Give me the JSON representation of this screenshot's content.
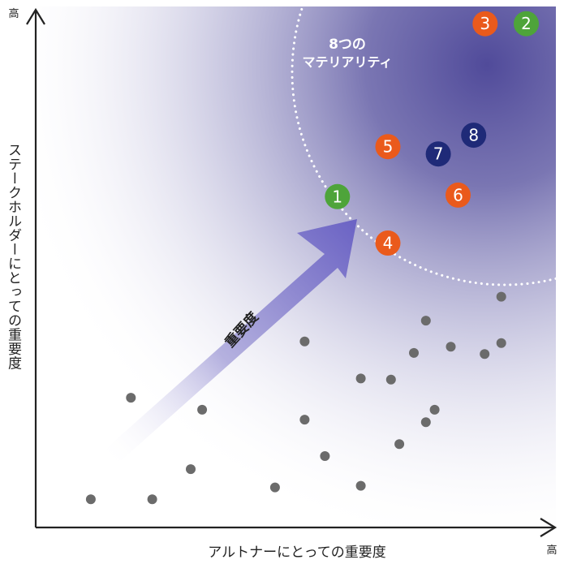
{
  "chart_data": {
    "type": "scatter",
    "title": "",
    "xlabel": "アルトナーにとっての重要度",
    "ylabel": "ステークホルダーにとっての重要度",
    "x_high_label": "高",
    "y_high_label": "高",
    "arrow_label": "重要度",
    "region_label_line1": "8つの",
    "region_label_line2": "マテリアリティ",
    "xlim": [
      0,
      100
    ],
    "ylim": [
      0,
      100
    ],
    "grid": false,
    "colors": {
      "green": "#4ea43a",
      "orange": "#ea5a1c",
      "navy": "#1f2a78",
      "gray": "#6b6b6b",
      "gradient": "#4b4597"
    },
    "materialities": [
      {
        "label": "1",
        "x": 58.0,
        "y": 63.5,
        "color": "green"
      },
      {
        "label": "2",
        "x": 94.3,
        "y": 96.7,
        "color": "green"
      },
      {
        "label": "3",
        "x": 86.4,
        "y": 96.7,
        "color": "orange"
      },
      {
        "label": "4",
        "x": 67.7,
        "y": 54.6,
        "color": "orange"
      },
      {
        "label": "5",
        "x": 67.7,
        "y": 73.1,
        "color": "orange"
      },
      {
        "label": "6",
        "x": 81.2,
        "y": 63.8,
        "color": "orange"
      },
      {
        "label": "7",
        "x": 77.4,
        "y": 71.7,
        "color": "navy"
      },
      {
        "label": "8",
        "x": 84.2,
        "y": 75.3,
        "color": "navy"
      }
    ],
    "other_points": [
      {
        "x": 10.6,
        "y": 5.4
      },
      {
        "x": 22.4,
        "y": 5.4
      },
      {
        "x": 18.3,
        "y": 24.9
      },
      {
        "x": 29.8,
        "y": 11.2
      },
      {
        "x": 32.0,
        "y": 22.6
      },
      {
        "x": 46.0,
        "y": 7.7
      },
      {
        "x": 51.7,
        "y": 35.7
      },
      {
        "x": 51.7,
        "y": 20.7
      },
      {
        "x": 55.6,
        "y": 13.7
      },
      {
        "x": 62.5,
        "y": 8.0
      },
      {
        "x": 62.5,
        "y": 28.6
      },
      {
        "x": 68.3,
        "y": 28.4
      },
      {
        "x": 69.9,
        "y": 16.0
      },
      {
        "x": 72.7,
        "y": 33.5
      },
      {
        "x": 75.0,
        "y": 39.7
      },
      {
        "x": 75.0,
        "y": 20.2
      },
      {
        "x": 76.7,
        "y": 22.6
      },
      {
        "x": 79.8,
        "y": 34.7
      },
      {
        "x": 86.3,
        "y": 33.3
      },
      {
        "x": 89.5,
        "y": 35.4
      },
      {
        "x": 89.5,
        "y": 44.3
      }
    ]
  }
}
